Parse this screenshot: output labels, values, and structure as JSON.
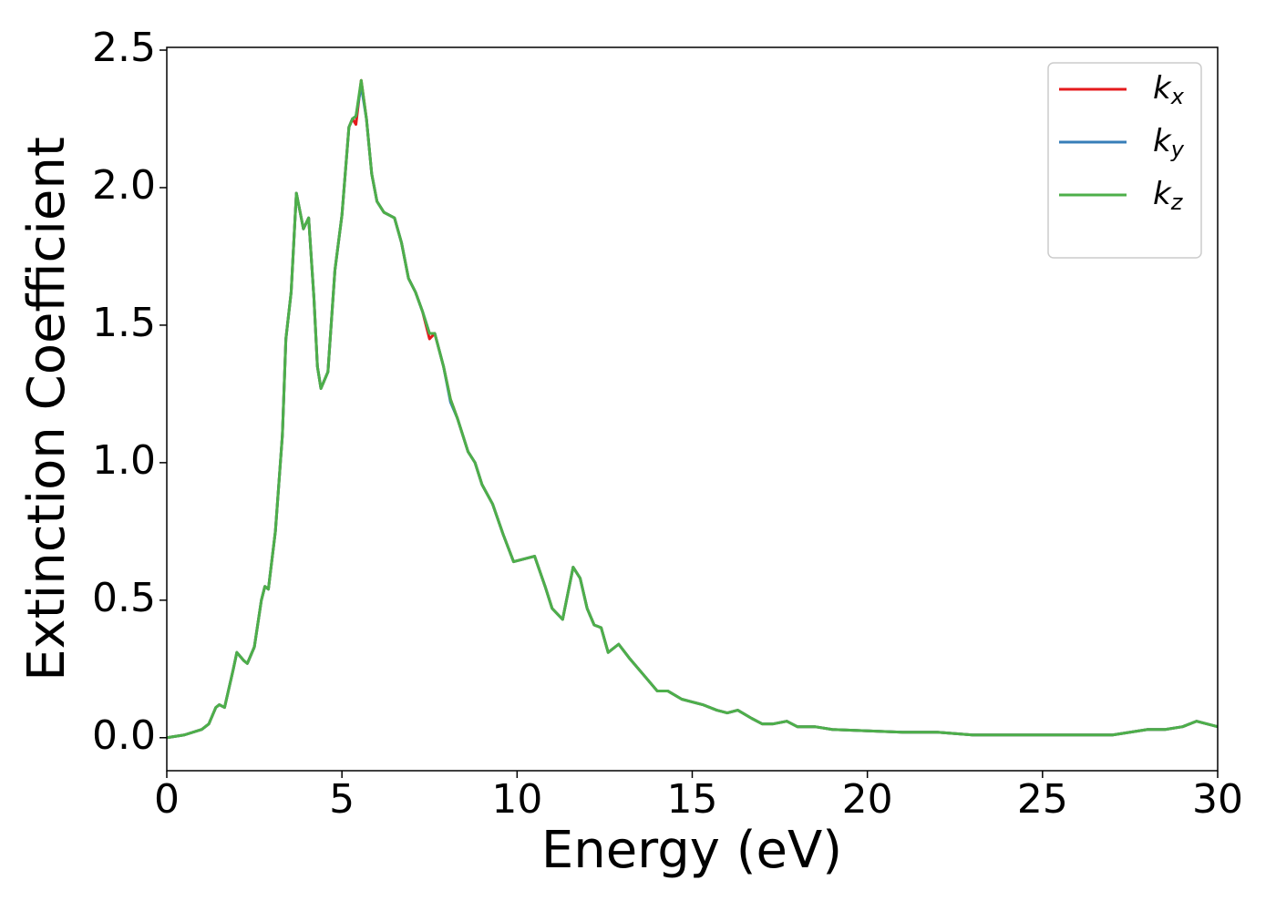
{
  "chart_data": {
    "type": "line",
    "xlabel": "Energy (eV)",
    "ylabel": "Extinction Coefficient",
    "x": [
      0,
      0.5,
      1,
      1.2,
      1.4,
      1.5,
      1.65,
      1.9,
      2,
      2.2,
      2.3,
      2.5,
      2.7,
      2.8,
      2.9,
      3.1,
      3.3,
      3.4,
      3.55,
      3.7,
      3.9,
      4.05,
      4.2,
      4.3,
      4.4,
      4.6,
      4.8,
      5,
      5.2,
      5.3,
      5.4,
      5.55,
      5.7,
      5.85,
      6,
      6.2,
      6.5,
      6.7,
      6.9,
      7.1,
      7.3,
      7.5,
      7.65,
      7.9,
      8.1,
      8.3,
      8.6,
      8.8,
      9,
      9.3,
      9.6,
      9.9,
      10.2,
      10.5,
      10.8,
      11,
      11.3,
      11.6,
      11.8,
      12,
      12.2,
      12.4,
      12.6,
      12.9,
      13.2,
      13.6,
      14,
      14.3,
      14.7,
      15,
      15.3,
      15.7,
      16,
      16.3,
      16.7,
      17,
      17.3,
      17.7,
      18,
      18.5,
      19,
      20,
      21,
      22,
      23,
      24,
      25,
      26,
      27,
      28,
      28.5,
      29,
      29.4,
      29.7,
      30
    ],
    "series": [
      {
        "name": "kx",
        "color": "#e41a1c",
        "values": [
          0,
          0.01,
          0.03,
          0.05,
          0.11,
          0.12,
          0.11,
          0.25,
          0.31,
          0.28,
          0.27,
          0.33,
          0.5,
          0.55,
          0.54,
          0.75,
          1.1,
          1.45,
          1.62,
          1.98,
          1.85,
          1.89,
          1.6,
          1.35,
          1.27,
          1.33,
          1.7,
          1.9,
          2.22,
          2.25,
          2.23,
          2.39,
          2.25,
          2.05,
          1.95,
          1.91,
          1.89,
          1.8,
          1.67,
          1.62,
          1.55,
          1.45,
          1.47,
          1.35,
          1.23,
          1.16,
          1.04,
          1,
          0.92,
          0.85,
          0.74,
          0.64,
          0.65,
          0.66,
          0.55,
          0.47,
          0.43,
          0.62,
          0.58,
          0.47,
          0.41,
          0.4,
          0.31,
          0.34,
          0.29,
          0.23,
          0.17,
          0.17,
          0.14,
          0.13,
          0.12,
          0.1,
          0.09,
          0.1,
          0.07,
          0.05,
          0.05,
          0.06,
          0.04,
          0.04,
          0.03,
          0.025,
          0.02,
          0.02,
          0.01,
          0.01,
          0.01,
          0.01,
          0.01,
          0.03,
          0.03,
          0.04,
          0.06,
          0.05,
          0.04
        ]
      },
      {
        "name": "ky",
        "color": "#377eb8",
        "values": [
          0,
          0.01,
          0.03,
          0.05,
          0.11,
          0.12,
          0.11,
          0.25,
          0.31,
          0.28,
          0.27,
          0.33,
          0.5,
          0.55,
          0.54,
          0.75,
          1.1,
          1.45,
          1.62,
          1.98,
          1.85,
          1.89,
          1.6,
          1.35,
          1.27,
          1.33,
          1.7,
          1.9,
          2.22,
          2.25,
          2.26,
          2.37,
          2.25,
          2.05,
          1.95,
          1.91,
          1.89,
          1.8,
          1.67,
          1.62,
          1.55,
          1.47,
          1.47,
          1.35,
          1.22,
          1.16,
          1.04,
          1,
          0.92,
          0.85,
          0.74,
          0.64,
          0.65,
          0.66,
          0.55,
          0.47,
          0.43,
          0.62,
          0.58,
          0.47,
          0.41,
          0.4,
          0.31,
          0.34,
          0.29,
          0.23,
          0.17,
          0.17,
          0.14,
          0.13,
          0.12,
          0.1,
          0.09,
          0.1,
          0.07,
          0.05,
          0.05,
          0.06,
          0.04,
          0.04,
          0.03,
          0.025,
          0.02,
          0.02,
          0.01,
          0.01,
          0.01,
          0.01,
          0.01,
          0.03,
          0.03,
          0.04,
          0.06,
          0.05,
          0.04
        ]
      },
      {
        "name": "kz",
        "color": "#4daf4a",
        "values": [
          0,
          0.01,
          0.03,
          0.05,
          0.11,
          0.12,
          0.11,
          0.25,
          0.31,
          0.28,
          0.27,
          0.33,
          0.5,
          0.55,
          0.54,
          0.75,
          1.1,
          1.45,
          1.62,
          1.98,
          1.85,
          1.89,
          1.6,
          1.35,
          1.27,
          1.33,
          1.7,
          1.9,
          2.22,
          2.25,
          2.26,
          2.39,
          2.25,
          2.05,
          1.95,
          1.91,
          1.89,
          1.8,
          1.67,
          1.62,
          1.55,
          1.47,
          1.47,
          1.35,
          1.23,
          1.16,
          1.04,
          1,
          0.92,
          0.85,
          0.74,
          0.64,
          0.65,
          0.66,
          0.55,
          0.47,
          0.43,
          0.62,
          0.58,
          0.47,
          0.41,
          0.4,
          0.31,
          0.34,
          0.29,
          0.23,
          0.17,
          0.17,
          0.14,
          0.13,
          0.12,
          0.1,
          0.09,
          0.1,
          0.07,
          0.05,
          0.05,
          0.06,
          0.04,
          0.04,
          0.03,
          0.025,
          0.02,
          0.02,
          0.01,
          0.01,
          0.01,
          0.01,
          0.01,
          0.03,
          0.03,
          0.04,
          0.06,
          0.05,
          0.04
        ]
      }
    ],
    "xlim": [
      0,
      30
    ],
    "xticks": [
      0,
      5,
      10,
      15,
      20,
      25,
      30
    ],
    "ylim": [
      -0.12,
      2.51
    ],
    "yticks": [
      {
        "value": 0,
        "label": "0.0"
      },
      0.5,
      {
        "value": 1,
        "label": "1.0"
      },
      1.5,
      {
        "value": 2,
        "label": "2.0"
      },
      2.5
    ],
    "grid": false,
    "legend": "upper right"
  }
}
